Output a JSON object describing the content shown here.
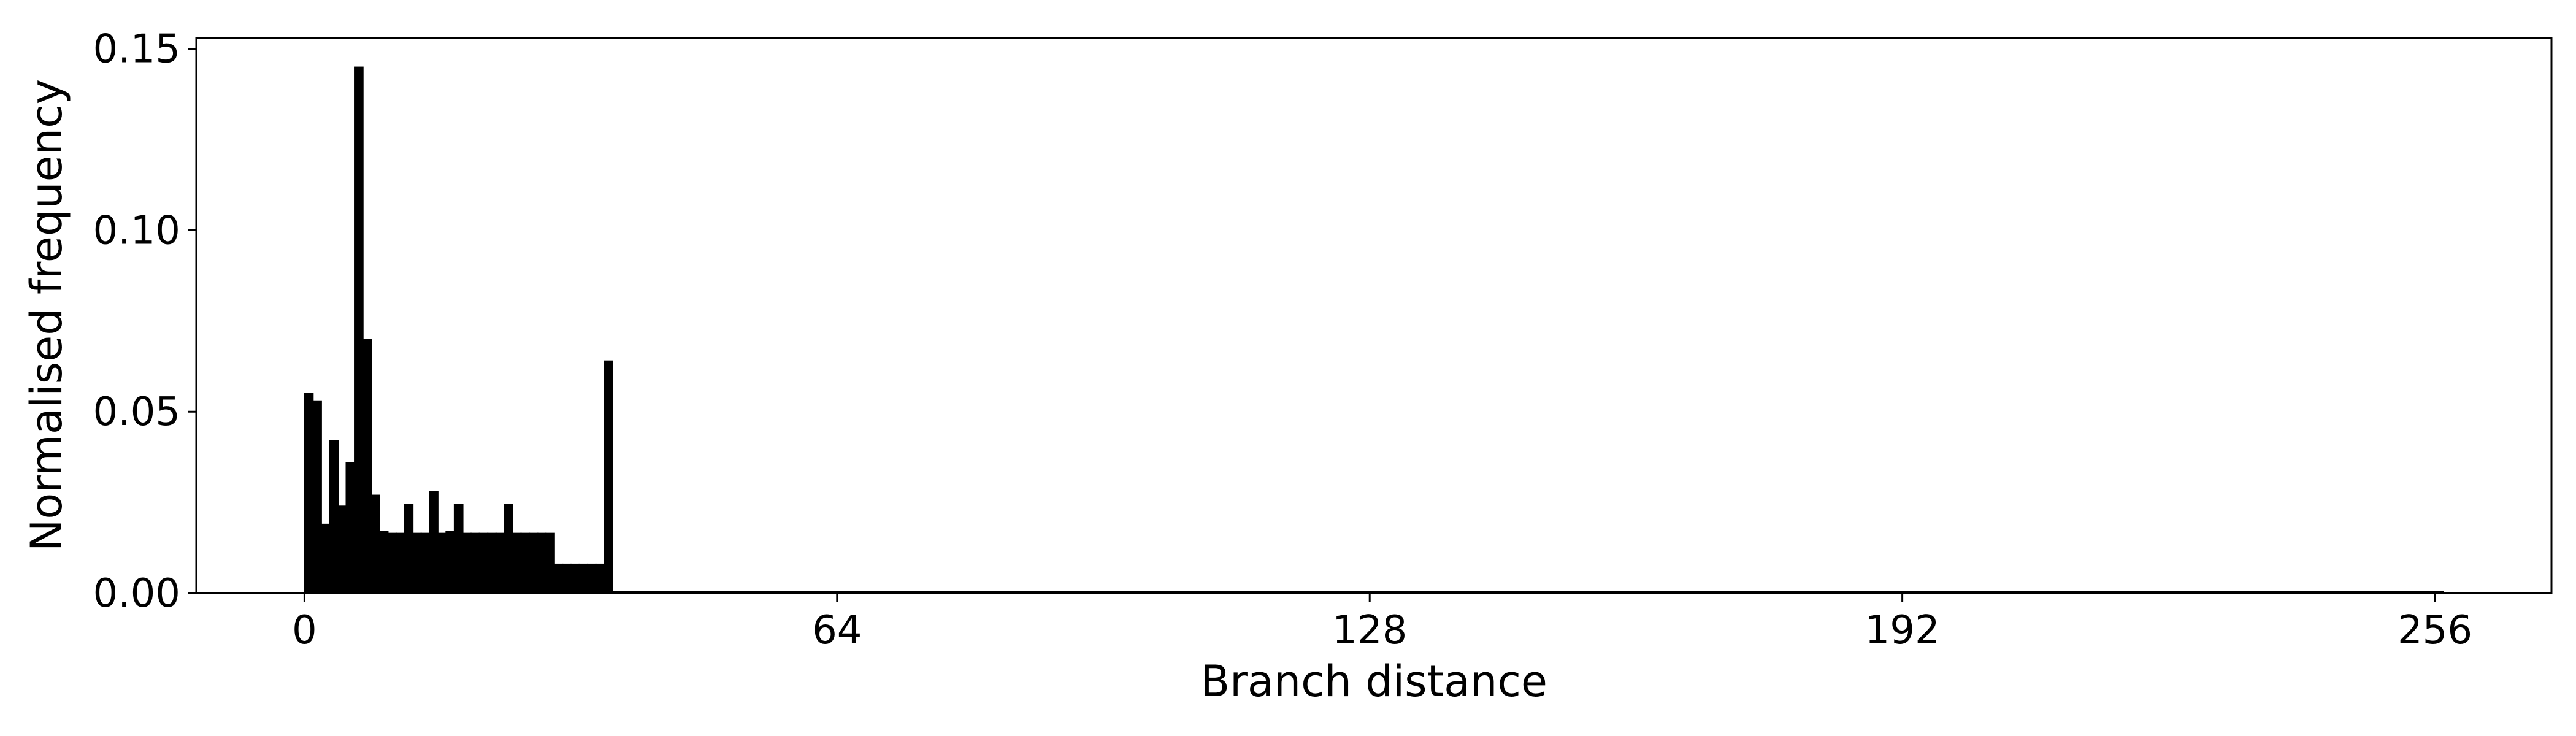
{
  "chart_data": {
    "type": "bar",
    "title": "",
    "xlabel": "Branch distance",
    "ylabel": "Normalised frequency",
    "xlim": [
      -13,
      270
    ],
    "ylim": [
      0,
      0.153
    ],
    "xticks": [
      0,
      64,
      128,
      192,
      256
    ],
    "xtick_labels": [
      "0",
      "64",
      "128",
      "192",
      "256"
    ],
    "yticks": [
      0,
      0.05,
      0.1,
      0.15
    ],
    "ytick_labels": [
      "0.00",
      "0.05",
      "0.10",
      "0.15"
    ],
    "grid": false,
    "bar_color": "#000000",
    "bin_width": 1,
    "x": [
      0,
      1,
      2,
      3,
      4,
      5,
      6,
      7,
      8,
      9,
      10,
      11,
      12,
      13,
      14,
      15,
      16,
      17,
      18,
      19,
      20,
      21,
      22,
      23,
      24,
      25,
      26,
      27,
      28,
      29,
      30,
      31,
      32,
      33,
      34,
      35,
      36,
      37,
      38,
      39,
      40,
      41,
      42,
      43,
      44,
      45,
      46,
      47,
      48,
      49,
      50,
      51,
      52,
      53,
      54,
      55,
      56,
      57,
      58,
      59,
      60,
      61,
      62,
      63,
      64,
      65,
      66,
      67,
      68,
      69,
      70,
      71,
      72,
      73,
      74,
      75,
      76,
      77,
      78,
      79,
      80,
      81,
      82,
      83,
      84,
      85,
      86,
      87,
      88,
      89,
      90,
      91,
      92,
      93,
      94,
      95,
      96,
      97,
      98,
      99,
      100,
      101,
      102,
      103,
      104,
      105,
      106,
      107,
      108,
      109,
      110,
      111,
      112,
      113,
      114,
      115,
      116,
      117,
      118,
      119,
      120,
      121,
      122,
      123,
      124,
      125,
      126,
      127,
      128,
      129,
      130,
      131,
      132,
      133,
      134,
      135,
      136,
      137,
      138,
      139,
      140,
      141,
      142,
      143,
      144,
      145,
      146,
      147,
      148,
      149,
      150,
      151,
      152,
      153,
      154,
      155,
      156,
      157,
      158,
      159,
      160,
      161,
      162,
      163,
      164,
      165,
      166,
      167,
      168,
      169,
      170,
      171,
      172,
      173,
      174,
      175,
      176,
      177,
      178,
      179,
      180,
      181,
      182,
      183,
      184,
      185,
      186,
      187,
      188,
      189,
      190,
      191,
      192,
      193,
      194,
      195,
      196,
      197,
      198,
      199,
      200,
      201,
      202,
      203,
      204,
      205,
      206,
      207,
      208,
      209,
      210,
      211,
      212,
      213,
      214,
      215,
      216,
      217,
      218,
      219,
      220,
      221,
      222,
      223,
      224,
      225,
      226,
      227,
      228,
      229,
      230,
      231,
      232,
      233,
      234,
      235,
      236,
      237,
      238,
      239,
      240,
      241,
      242,
      243,
      244,
      245,
      246,
      247,
      248,
      249,
      250,
      251,
      252,
      253,
      254,
      255,
      256
    ],
    "values": [
      0.055,
      0.053,
      0.019,
      0.042,
      0.024,
      0.036,
      0.145,
      0.07,
      0.027,
      0.017,
      0.0165,
      0.0165,
      0.0245,
      0.0165,
      0.0165,
      0.028,
      0.0165,
      0.017,
      0.0245,
      0.0165,
      0.0165,
      0.0165,
      0.0165,
      0.0165,
      0.0245,
      0.0165,
      0.0165,
      0.0165,
      0.0165,
      0.0165,
      0.008,
      0.008,
      0.008,
      0.008,
      0.008,
      0.008,
      0.064,
      0.0005,
      0.0005,
      0.0005,
      0.0005,
      0.0005,
      0.0005,
      0.0005,
      0.0005,
      0.0005,
      0.0005,
      0.0005,
      0.0005,
      0.0005,
      0.0005,
      0.0005,
      0.0005,
      0.0005,
      0.0005,
      0.0005,
      0.0005,
      0.0005,
      0.0005,
      0.0005,
      0.0005,
      0.0005,
      0.0005,
      0.0005,
      0.0005,
      0.0005,
      0.0005,
      0.0005,
      0.0005,
      0.0005,
      0.0005,
      0.0005,
      0.0005,
      0.0005,
      0.0005,
      0.0005,
      0.0005,
      0.0005,
      0.0005,
      0.0005,
      0.0005,
      0.0005,
      0.0005,
      0.0005,
      0.0005,
      0.0005,
      0.0005,
      0.0005,
      0.0005,
      0.0005,
      0.0005,
      0.0005,
      0.0005,
      0.0005,
      0.0005,
      0.0005,
      0.0005,
      0.0005,
      0.0005,
      0.0005,
      0.0005,
      0.0005,
      0.0005,
      0.0005,
      0.0005,
      0.0005,
      0.0005,
      0.0005,
      0.0005,
      0.0005,
      0.0005,
      0.0005,
      0.0005,
      0.0005,
      0.0005,
      0.0005,
      0.0005,
      0.0005,
      0.0005,
      0.0005,
      0.0005,
      0.0005,
      0.0005,
      0.0005,
      0.0005,
      0.0005,
      0.0005,
      0.0005,
      0.0005,
      0.0005,
      0.0005,
      0.0005,
      0.0005,
      0.0005,
      0.0005,
      0.0005,
      0.0005,
      0.0005,
      0.0005,
      0.0005,
      0.0005,
      0.0005,
      0.0005,
      0.0005,
      0.0005,
      0.0005,
      0.0005,
      0.0005,
      0.0005,
      0.0005,
      0.0005,
      0.0005,
      0.0005,
      0.0005,
      0.0005,
      0.0005,
      0.0005,
      0.0005,
      0.0005,
      0.0005,
      0.0005,
      0.0005,
      0.0005,
      0.0005,
      0.0005,
      0.0005,
      0.0005,
      0.0005,
      0.0005,
      0.0005,
      0.0005,
      0.0005,
      0.0005,
      0.0005,
      0.0005,
      0.0005,
      0.0005,
      0.0005,
      0.0005,
      0.0005,
      0.0005,
      0.0005,
      0.0005,
      0.0005,
      0.0005,
      0.0005,
      0.0005,
      0.0005,
      0.0005,
      0.0005,
      0.0005,
      0.0005,
      0.0005,
      0.0005,
      0.0005,
      0.0005,
      0.0005,
      0.0005,
      0.0005,
      0.0005,
      0.0005,
      0.0005,
      0.0005,
      0.0005,
      0.0005,
      0.0005,
      0.0005,
      0.0005,
      0.0005,
      0.0005,
      0.0005,
      0.0005,
      0.0005,
      0.0005,
      0.0005,
      0.0005,
      0.0005,
      0.0005,
      0.0005,
      0.0005,
      0.0005,
      0.0005,
      0.0005,
      0.0005,
      0.0005,
      0.0005,
      0.0005,
      0.0005,
      0.0005,
      0.0005,
      0.0005,
      0.0005,
      0.0005,
      0.0005,
      0.0005,
      0.0005,
      0.0005,
      0.0005,
      0.0005,
      0.0005,
      0.0005,
      0.0005,
      0.0005,
      0.0005,
      0.0005,
      0.0005,
      0.0005,
      0.0005,
      0.0005,
      0.0005,
      0.0005,
      0.0005,
      0.0005,
      0.0005,
      0.0005,
      0.0005,
      0.0005
    ]
  }
}
